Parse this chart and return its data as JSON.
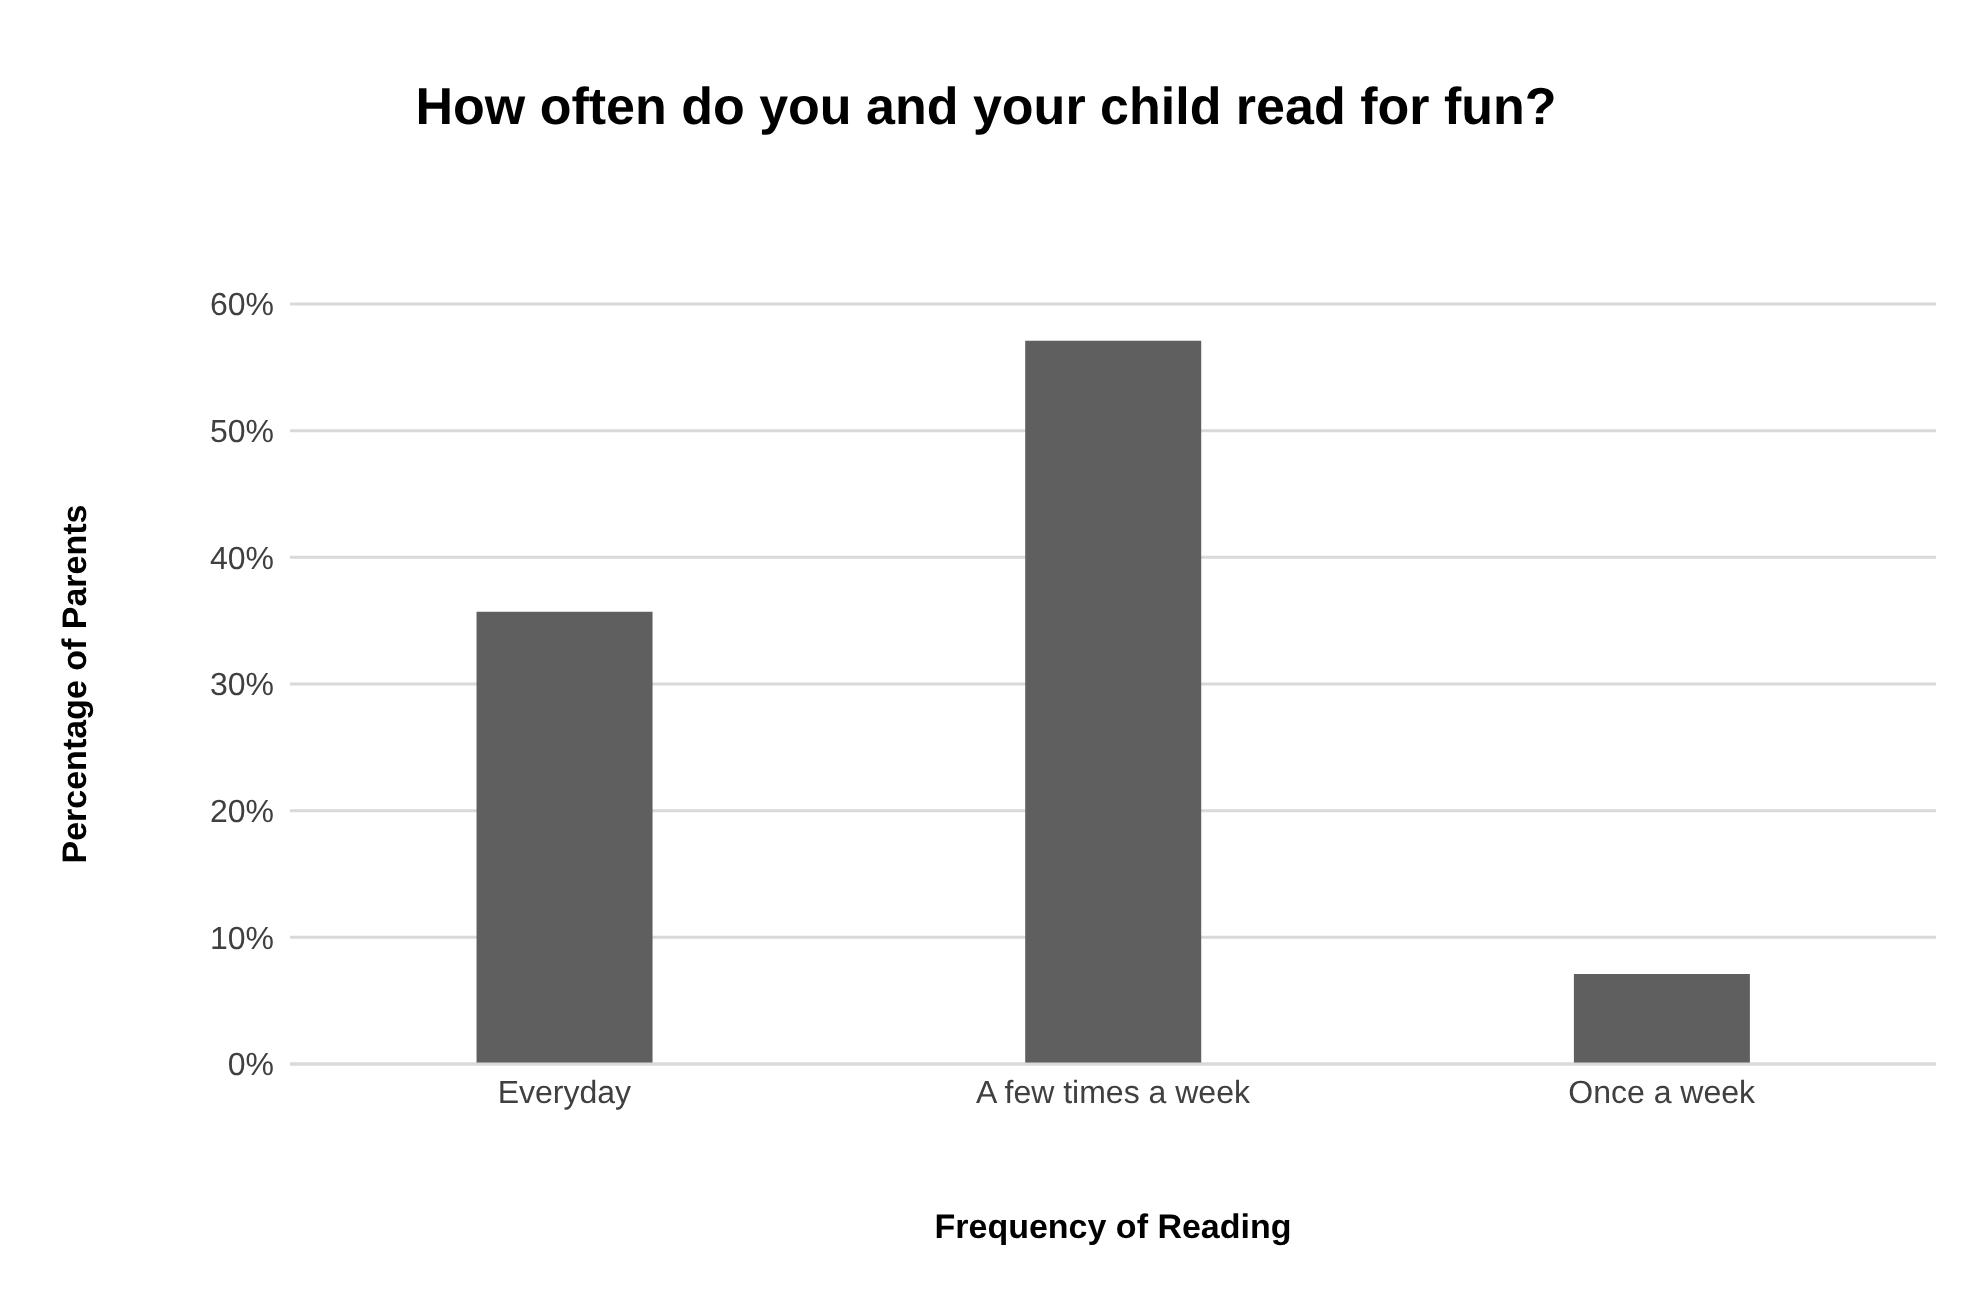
{
  "chart_data": {
    "type": "bar",
    "title": "How often do you and your child read for fun?",
    "xlabel": "Frequency of Reading",
    "ylabel": "Percentage of Parents",
    "categories": [
      "Everyday",
      "A few times a week",
      "Once a week"
    ],
    "values": [
      35.7,
      57.1,
      7.1
    ],
    "color": "#5f5f5f",
    "ylim": [
      0,
      60
    ],
    "yticks": [
      {
        "value": 0,
        "label": "0%"
      },
      {
        "value": 10,
        "label": "10%"
      },
      {
        "value": 20,
        "label": "20%"
      },
      {
        "value": 30,
        "label": "30%"
      },
      {
        "value": 40,
        "label": "40%"
      },
      {
        "value": 50,
        "label": "50%"
      },
      {
        "value": 60,
        "label": "60%"
      }
    ],
    "grid": "y",
    "legend": false
  }
}
